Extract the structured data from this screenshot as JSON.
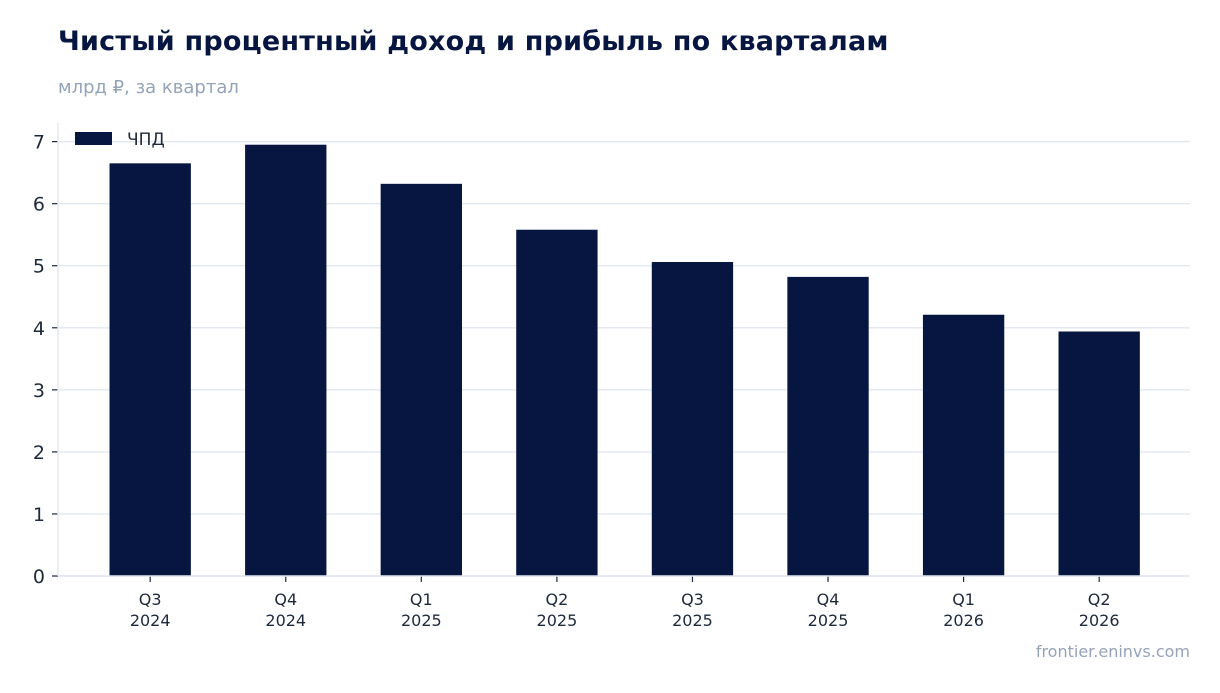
{
  "header": {
    "title": "Чистый процентный доход и прибыль по кварталам",
    "subtitle": "млрд ₽, за квартал"
  },
  "footer": {
    "source": "frontier.eninvs.com"
  },
  "colors": {
    "bar": "#061641",
    "grid": "#e2e8f0",
    "muted": "#94a3b8",
    "text": "#1e293b"
  },
  "chart_data": {
    "type": "bar",
    "title": "Чистый процентный доход и прибыль по кварталам",
    "subtitle": "млрд ₽, за квартал",
    "categories": [
      [
        "Q3",
        "2024"
      ],
      [
        "Q4",
        "2024"
      ],
      [
        "Q1",
        "2025"
      ],
      [
        "Q2",
        "2025"
      ],
      [
        "Q3",
        "2025"
      ],
      [
        "Q4",
        "2025"
      ],
      [
        "Q1",
        "2026"
      ],
      [
        "Q2",
        "2026"
      ]
    ],
    "series": [
      {
        "name": "ЧПД",
        "values": [
          6.65,
          6.95,
          6.32,
          5.58,
          5.06,
          4.82,
          4.21,
          3.94
        ]
      }
    ],
    "ylim": [
      0,
      7.3
    ],
    "yticks": [
      0,
      1,
      2,
      3,
      4,
      5,
      6,
      7
    ],
    "grid": true,
    "legend": "top-left"
  }
}
